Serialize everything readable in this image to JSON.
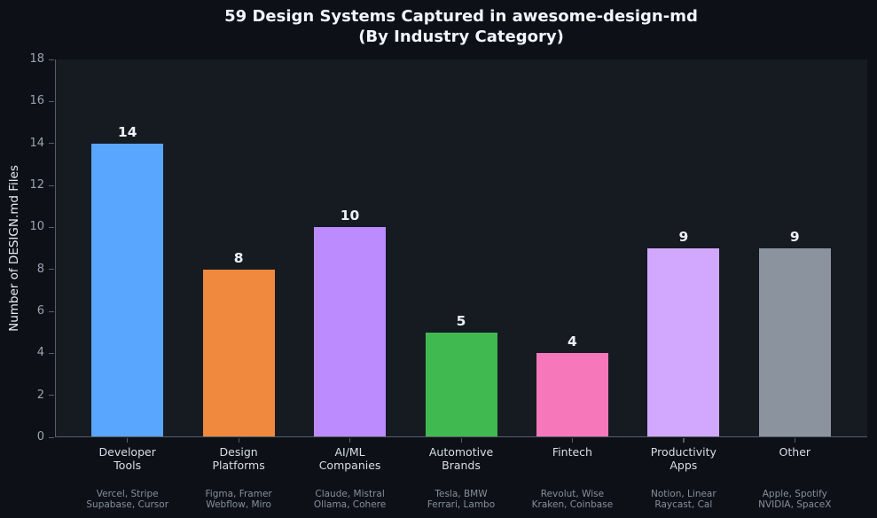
{
  "chart_data": {
    "type": "bar",
    "title": "59 Design Systems Captured in awesome-design-md\n(By Industry Category)",
    "title_lines": [
      "59 Design Systems Captured in awesome-design-md",
      "(By Industry Category)"
    ],
    "xlabel": "",
    "ylabel": "Number of DESIGN.md Files",
    "ylim": [
      0,
      18
    ],
    "yticks": [
      0,
      2,
      4,
      6,
      8,
      10,
      12,
      14,
      16,
      18
    ],
    "grid": false,
    "legend": "none",
    "categories": [
      "Developer\nTools",
      "Design\nPlatforms",
      "AI/ML\nCompanies",
      "Automotive\nBrands",
      "Fintech",
      "Productivity\nApps",
      "Other"
    ],
    "values": [
      14,
      8,
      10,
      5,
      4,
      9,
      9
    ],
    "value_labels": [
      "14",
      "8",
      "10",
      "5",
      "4",
      "9",
      "9"
    ],
    "bar_colors": [
      "#58a6ff",
      "#f0883e",
      "#bc8cff",
      "#3fb950",
      "#f778ba",
      "#d2a8ff",
      "#8b949e"
    ],
    "company_sublabels": [
      "Vercel, Stripe\nSupabase, Cursor",
      "Figma, Framer\nWebflow, Miro",
      "Claude, Mistral\nOllama, Cohere",
      "Tesla, BMW\nFerrari, Lambo",
      "Revolut, Wise\nKraken, Coinbase",
      "Notion, Linear\nRaycast, Cal",
      "Apple, Spotify\nNVIDIA, SpaceX"
    ]
  },
  "colors": {
    "figure_bg": "#0d1117",
    "plot_bg": "#161b22",
    "spine": "#565e68",
    "title_text": "#f0f6fc",
    "tick_text": "#9aa4af",
    "value_label_text": "#eef2f6",
    "category_text": "#d8dee5",
    "company_text": "#868f99"
  }
}
